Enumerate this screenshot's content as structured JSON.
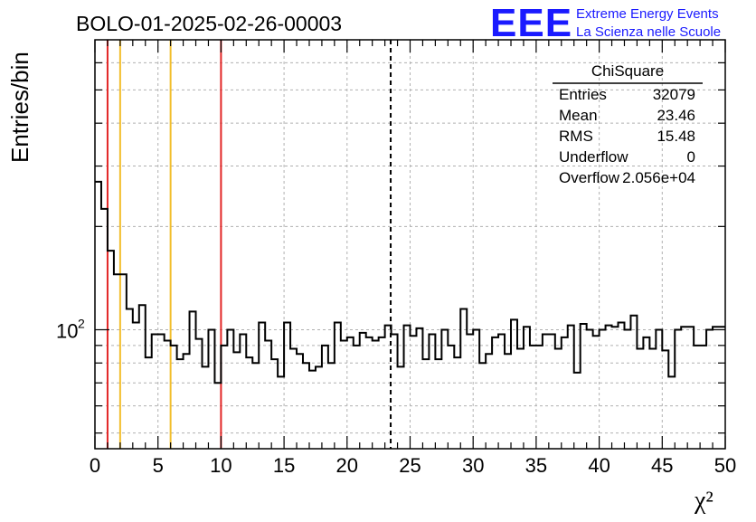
{
  "title": "BOLO-01-2025-02-26-00003",
  "logo": {
    "mark": "EEE",
    "line1": "Extreme Energy Events",
    "line2": "La Scienza nelle Scuole",
    "color": "#1a1aff"
  },
  "stats_box": {
    "title": "ChiSquare",
    "rows": [
      {
        "label": "Entries",
        "value": "32079"
      },
      {
        "label": "Mean",
        "value": "23.46"
      },
      {
        "label": "RMS",
        "value": "15.48"
      },
      {
        "label": "Underflow",
        "value": "0"
      },
      {
        "label": "Overflow",
        "value": "2.056e+04"
      }
    ]
  },
  "chart_data": {
    "type": "histogram",
    "xlabel": "χ²",
    "ylabel": "Entries/bin",
    "xlim": [
      0,
      50
    ],
    "ylim": [
      45,
      700
    ],
    "yscale": "log",
    "grid": true,
    "x_ticks": [
      0,
      5,
      10,
      15,
      20,
      25,
      30,
      35,
      40,
      45,
      50
    ],
    "x_tick_labels": [
      "0",
      "5",
      "10",
      "15",
      "20",
      "25",
      "30",
      "35",
      "40",
      "45",
      "50"
    ],
    "y_tick_label": {
      "base": "10",
      "exponent": "2",
      "value": 100
    },
    "bin_width": 0.5,
    "values": [
      270,
      225,
      170,
      145,
      145,
      115,
      105,
      118,
      83,
      97,
      97,
      93,
      90,
      82,
      85,
      113,
      94,
      78,
      100,
      70,
      90,
      100,
      86,
      97,
      83,
      80,
      105,
      93,
      82,
      73,
      105,
      88,
      85,
      80,
      76,
      78,
      90,
      80,
      105,
      93,
      95,
      90,
      98,
      95,
      93,
      95,
      103,
      97,
      78,
      103,
      96,
      101,
      82,
      97,
      82,
      100,
      90,
      83,
      115,
      97,
      100,
      80,
      85,
      95,
      97,
      85,
      107,
      88,
      102,
      90,
      90,
      97,
      97,
      88,
      95,
      103,
      75,
      104,
      100,
      96,
      100,
      103,
      102,
      105,
      100,
      110,
      88,
      95,
      88,
      100,
      87,
      73,
      100,
      102,
      102,
      90,
      90,
      100,
      102,
      102
    ],
    "vertical_lines": [
      {
        "x": 1,
        "color": "#e32626",
        "style": "solid"
      },
      {
        "x": 2,
        "color": "#f2be2c",
        "style": "solid"
      },
      {
        "x": 6,
        "color": "#f2be2c",
        "style": "solid"
      },
      {
        "x": 10,
        "color": "#e32626",
        "style": "solid"
      },
      {
        "x": 23.46,
        "color": "#000000",
        "style": "dashed"
      }
    ]
  }
}
